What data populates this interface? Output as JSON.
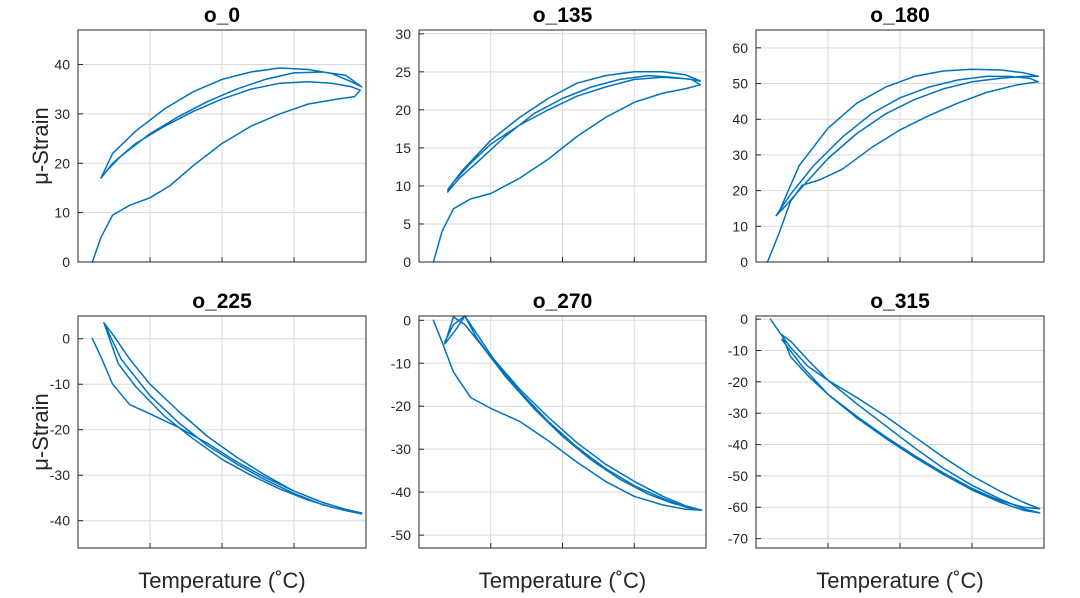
{
  "chart_data": [
    {
      "type": "line",
      "title": "o_0",
      "ylabel": "μ-Strain",
      "xlabel": "",
      "ylim": [
        0,
        47
      ],
      "yticks": [
        0,
        10,
        20,
        30,
        40
      ],
      "xlim": [
        0,
        1
      ],
      "grid": true,
      "color": "#0072BD",
      "series": [
        {
          "x": [
            0.05,
            0.08,
            0.12,
            0.18,
            0.25,
            0.32,
            0.4,
            0.5,
            0.6,
            0.7,
            0.8,
            0.9,
            0.96,
            0.98,
            0.95,
            0.88,
            0.8,
            0.7,
            0.6,
            0.5,
            0.4,
            0.3,
            0.2,
            0.12,
            0.08,
            0.1,
            0.15,
            0.25,
            0.35,
            0.45,
            0.55,
            0.65,
            0.75,
            0.85,
            0.93,
            0.985,
            0.95,
            0.88,
            0.8,
            0.7,
            0.6,
            0.5,
            0.4,
            0.3,
            0.2,
            0.12,
            0.08
          ],
          "y": [
            0,
            5,
            9.5,
            11.5,
            13,
            15.5,
            19.5,
            24,
            27.5,
            30,
            32,
            33,
            33.5,
            34.8,
            35.5,
            36.2,
            36.5,
            36.2,
            35,
            33,
            30.5,
            27.5,
            24,
            20,
            17,
            18.5,
            21.5,
            26,
            29.5,
            32.5,
            35,
            37,
            38.3,
            38.5,
            37.8,
            35.5,
            36.5,
            38.2,
            39,
            39.3,
            38.5,
            37,
            34.5,
            31,
            26.5,
            22,
            17
          ]
        }
      ]
    },
    {
      "type": "line",
      "title": "o_135",
      "ylabel": "",
      "xlabel": "",
      "ylim": [
        0,
        30.5
      ],
      "yticks": [
        0,
        5,
        10,
        15,
        20,
        25,
        30
      ],
      "xlim": [
        0,
        1
      ],
      "grid": true,
      "color": "#0072BD",
      "series": [
        {
          "x": [
            0.05,
            0.08,
            0.12,
            0.18,
            0.25,
            0.35,
            0.45,
            0.55,
            0.65,
            0.75,
            0.85,
            0.93,
            0.98,
            0.95,
            0.88,
            0.8,
            0.7,
            0.6,
            0.5,
            0.4,
            0.3,
            0.2,
            0.14,
            0.1,
            0.12,
            0.18,
            0.25,
            0.35,
            0.45,
            0.55,
            0.65,
            0.75,
            0.85,
            0.93,
            0.98,
            0.93,
            0.85,
            0.75,
            0.65,
            0.55,
            0.45,
            0.35,
            0.25,
            0.15,
            0.1
          ],
          "y": [
            0,
            4,
            7,
            8.3,
            9,
            11,
            13.5,
            16.5,
            19,
            21,
            22.2,
            22.8,
            23.3,
            24,
            24.3,
            24.5,
            24,
            23,
            21.5,
            19.5,
            16.5,
            13,
            11,
            9.2,
            10.5,
            13,
            15.5,
            18,
            20,
            21.8,
            23,
            24,
            24.3,
            24.1,
            23.8,
            24.6,
            25,
            25,
            24.5,
            23.5,
            21.5,
            19,
            16,
            12,
            9.5
          ]
        }
      ]
    },
    {
      "type": "line",
      "title": "o_180",
      "ylabel": "",
      "xlabel": "",
      "ylim": [
        0,
        65
      ],
      "yticks": [
        0,
        10,
        20,
        30,
        40,
        50,
        60
      ],
      "xlim": [
        0,
        1
      ],
      "grid": true,
      "color": "#0072BD",
      "series": [
        {
          "x": [
            0.04,
            0.08,
            0.12,
            0.16,
            0.22,
            0.3,
            0.4,
            0.5,
            0.6,
            0.7,
            0.8,
            0.9,
            0.98,
            0.95,
            0.88,
            0.8,
            0.7,
            0.6,
            0.5,
            0.4,
            0.3,
            0.2,
            0.12,
            0.07,
            0.1,
            0.16,
            0.25,
            0.35,
            0.45,
            0.55,
            0.65,
            0.75,
            0.85,
            0.93,
            0.98,
            0.93,
            0.85,
            0.75,
            0.65,
            0.55,
            0.45,
            0.35,
            0.25,
            0.15,
            0.08
          ],
          "y": [
            0,
            8,
            17,
            21.5,
            23,
            26,
            32,
            37,
            41,
            44.5,
            47.5,
            49.5,
            50.5,
            51.5,
            52,
            52,
            51,
            49,
            46,
            41.5,
            35,
            27,
            19,
            13,
            15.5,
            21,
            29,
            36,
            41.5,
            45.5,
            48.5,
            50.5,
            51.5,
            52,
            52,
            53,
            53.8,
            54,
            53.5,
            52,
            49,
            44.5,
            37.5,
            27,
            14
          ]
        }
      ]
    },
    {
      "type": "line",
      "title": "o_225",
      "ylabel": "μ-Strain",
      "xlabel": "Temperature (˚C)",
      "ylim": [
        -46,
        5
      ],
      "yticks": [
        -40,
        -30,
        -20,
        -10,
        0
      ],
      "xlim": [
        0,
        1
      ],
      "grid": true,
      "color": "#0072BD",
      "series": [
        {
          "x": [
            0.05,
            0.08,
            0.12,
            0.18,
            0.25,
            0.35,
            0.45,
            0.55,
            0.65,
            0.75,
            0.85,
            0.93,
            0.985,
            0.95,
            0.88,
            0.8,
            0.7,
            0.6,
            0.5,
            0.4,
            0.3,
            0.2,
            0.14,
            0.09,
            0.12,
            0.18,
            0.25,
            0.35,
            0.45,
            0.55,
            0.65,
            0.75,
            0.85,
            0.93,
            0.985,
            0.93,
            0.85,
            0.75,
            0.65,
            0.55,
            0.45,
            0.35,
            0.25,
            0.15,
            0.09
          ],
          "y": [
            0,
            -4,
            -10,
            -14.5,
            -16.5,
            -19.5,
            -23,
            -27,
            -30.5,
            -33.5,
            -36,
            -37.5,
            -38.3,
            -38,
            -37,
            -35.5,
            -33,
            -30,
            -26.5,
            -22,
            -17,
            -10.5,
            -5.5,
            3.5,
            1,
            -4.5,
            -10,
            -16,
            -21.5,
            -26,
            -30,
            -33.5,
            -36,
            -37.5,
            -38.5,
            -37.8,
            -36.5,
            -34,
            -31,
            -27.5,
            -23.5,
            -18.5,
            -12.5,
            -4.5,
            3.5
          ]
        }
      ]
    },
    {
      "type": "line",
      "title": "o_270",
      "ylabel": "",
      "xlabel": "Temperature (˚C)",
      "ylim": [
        -53,
        1
      ],
      "yticks": [
        -50,
        -40,
        -30,
        -20,
        -10,
        0
      ],
      "xlim": [
        0,
        1
      ],
      "grid": true,
      "color": "#0072BD",
      "series": [
        {
          "x": [
            0.05,
            0.08,
            0.12,
            0.18,
            0.25,
            0.35,
            0.45,
            0.55,
            0.65,
            0.75,
            0.85,
            0.93,
            0.985,
            0.95,
            0.88,
            0.8,
            0.7,
            0.6,
            0.5,
            0.4,
            0.3,
            0.22,
            0.16,
            0.12,
            0.09,
            0.13,
            0.16,
            0.2,
            0.26,
            0.35,
            0.45,
            0.55,
            0.65,
            0.75,
            0.85,
            0.93,
            0.985,
            0.93,
            0.85,
            0.75,
            0.65,
            0.55,
            0.45,
            0.35,
            0.26,
            0.2,
            0.16,
            0.12,
            0.09
          ],
          "y": [
            0,
            -5,
            -12,
            -18,
            -20.5,
            -23.5,
            -28,
            -33,
            -37.5,
            -41,
            -43,
            -44,
            -44.2,
            -43.8,
            -42.5,
            -40.5,
            -37,
            -32.5,
            -27,
            -20.5,
            -13,
            -6,
            -1,
            0.8,
            -5.5,
            -2,
            1,
            -3,
            -9,
            -16,
            -22.5,
            -28.5,
            -33.5,
            -37.5,
            -41,
            -43.2,
            -44.2,
            -43.5,
            -41.5,
            -38.5,
            -34.5,
            -29.5,
            -23.5,
            -16.5,
            -9.5,
            -4,
            1,
            -1,
            -5
          ]
        }
      ]
    },
    {
      "type": "line",
      "title": "o_315",
      "ylabel": "",
      "xlabel": "Temperature (˚C)",
      "ylim": [
        -73,
        1
      ],
      "yticks": [
        -70,
        -60,
        -50,
        -40,
        -30,
        -20,
        -10,
        0
      ],
      "xlim": [
        0,
        1
      ],
      "grid": true,
      "color": "#0072BD",
      "series": [
        {
          "x": [
            0.05,
            0.08,
            0.12,
            0.18,
            0.25,
            0.35,
            0.45,
            0.55,
            0.65,
            0.75,
            0.85,
            0.93,
            0.985,
            0.93,
            0.85,
            0.75,
            0.65,
            0.55,
            0.45,
            0.35,
            0.25,
            0.18,
            0.12,
            0.09,
            0.12,
            0.18,
            0.25,
            0.35,
            0.45,
            0.55,
            0.65,
            0.75,
            0.85,
            0.93,
            0.985,
            0.93,
            0.85,
            0.75,
            0.65,
            0.55,
            0.45,
            0.35,
            0.25,
            0.16,
            0.09
          ],
          "y": [
            0,
            -4,
            -9,
            -15,
            -19.5,
            -25,
            -31,
            -37.5,
            -44,
            -50,
            -55,
            -58.5,
            -60.5,
            -60,
            -58,
            -54,
            -49,
            -43.5,
            -37.5,
            -31,
            -24,
            -18,
            -12,
            -5,
            -7,
            -13,
            -19.5,
            -27,
            -34,
            -41,
            -47.5,
            -53,
            -57.5,
            -60.5,
            -61.8,
            -61,
            -58.5,
            -54.5,
            -49.5,
            -44,
            -38,
            -31.5,
            -24,
            -15,
            -6.5
          ]
        }
      ]
    }
  ]
}
